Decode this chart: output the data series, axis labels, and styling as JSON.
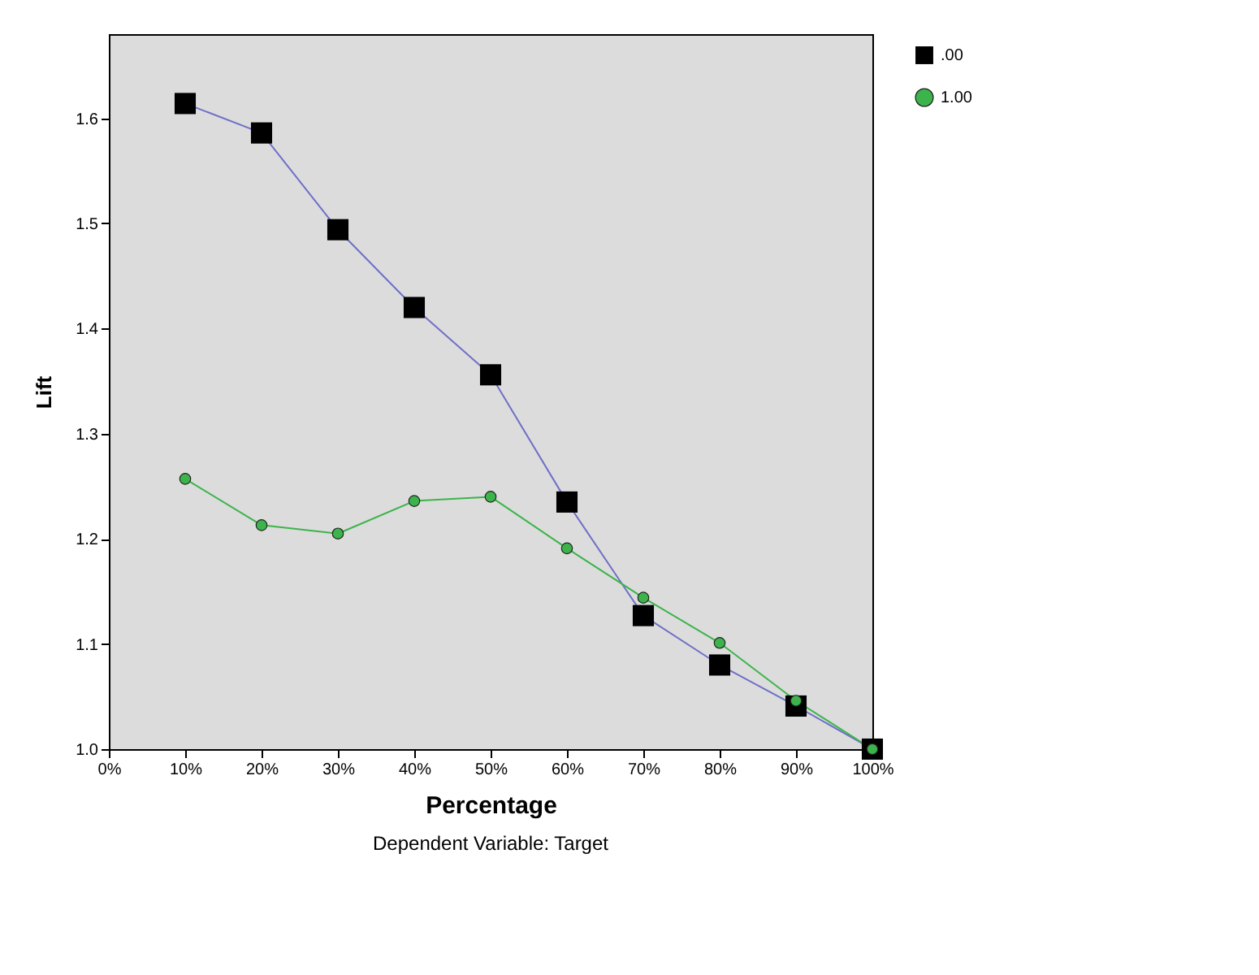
{
  "chart_data": {
    "type": "line",
    "xlabel": "Percentage",
    "ylabel": "Lift",
    "annotations": [
      "Dependent Variable: Target"
    ],
    "x": [
      10,
      20,
      30,
      40,
      50,
      60,
      70,
      80,
      90,
      100
    ],
    "xlim": [
      0,
      100
    ],
    "xticks": [
      {
        "value": 0,
        "label": "0%"
      },
      {
        "value": 10,
        "label": "10%"
      },
      {
        "value": 20,
        "label": "20%"
      },
      {
        "value": 30,
        "label": "30%"
      },
      {
        "value": 40,
        "label": "40%"
      },
      {
        "value": 50,
        "label": "50%"
      },
      {
        "value": 60,
        "label": "60%"
      },
      {
        "value": 70,
        "label": "70%"
      },
      {
        "value": 80,
        "label": "80%"
      },
      {
        "value": 90,
        "label": "90%"
      },
      {
        "value": 100,
        "label": "100%"
      }
    ],
    "ylim": [
      1.0,
      1.68
    ],
    "yticks": [
      {
        "value": 1.0,
        "label": "1.0"
      },
      {
        "value": 1.1,
        "label": "1.1"
      },
      {
        "value": 1.2,
        "label": "1.2"
      },
      {
        "value": 1.3,
        "label": "1.3"
      },
      {
        "value": 1.4,
        "label": "1.4"
      },
      {
        "value": 1.5,
        "label": "1.5"
      },
      {
        "value": 1.6,
        "label": "1.6"
      }
    ],
    "grid": false,
    "legend": "top right",
    "series": [
      {
        "name": ".00",
        "color": "#6f6fc8",
        "colors": [
          "#000000",
          "#000000",
          "#000000",
          "#000000",
          "#000000",
          "#000000",
          "#000000",
          "#000000",
          "#000000",
          "#000000"
        ],
        "marker": "square",
        "values": [
          1.614,
          1.586,
          1.494,
          1.42,
          1.356,
          1.235,
          1.127,
          1.08,
          1.041,
          1.0
        ]
      },
      {
        "name": "1.00",
        "color": "#3cb44b",
        "marker": "circle",
        "values": [
          1.257,
          1.213,
          1.205,
          1.236,
          1.24,
          1.191,
          1.144,
          1.101,
          1.046,
          1.0
        ]
      }
    ]
  }
}
